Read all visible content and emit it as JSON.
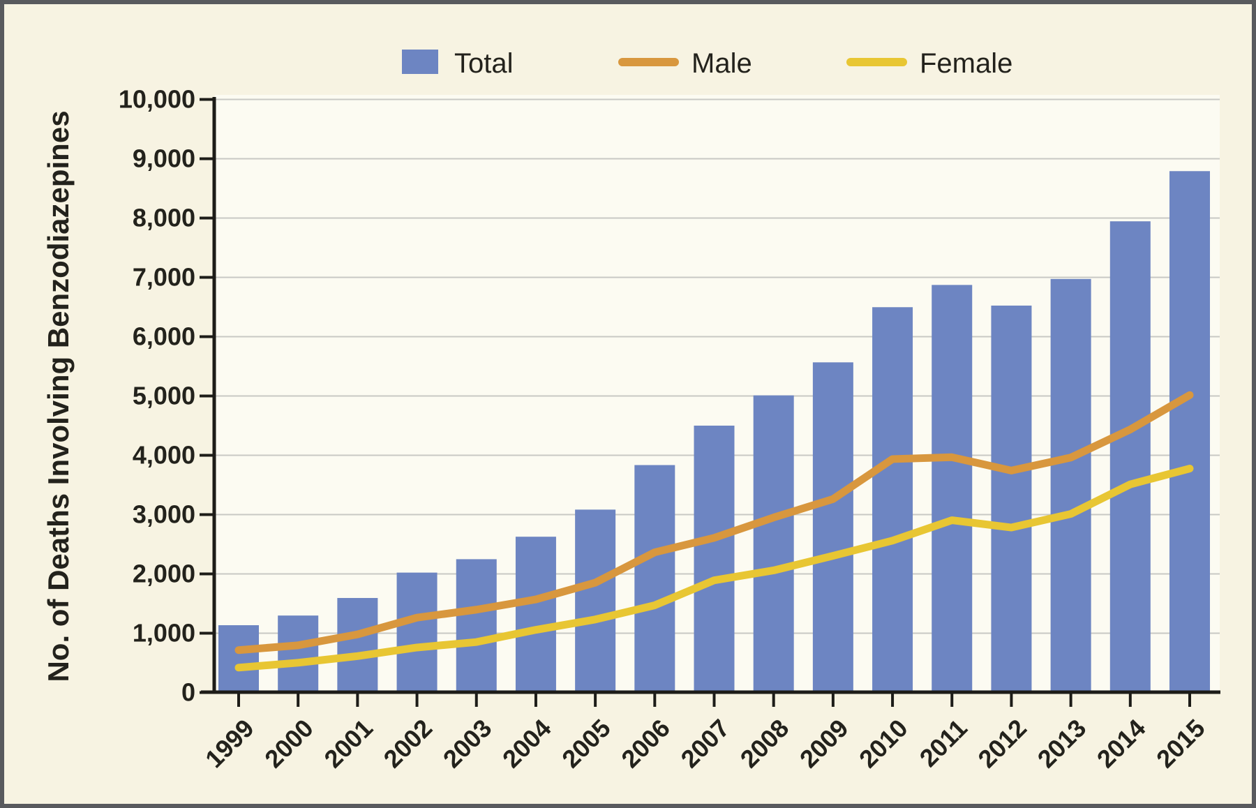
{
  "legend": {
    "total_label": "Total",
    "male_label": "Male",
    "female_label": "Female"
  },
  "y_axis": {
    "title": "No. of Deaths Involving Benzodiazepines",
    "tick_labels": [
      "0",
      "1,000",
      "2,000",
      "3,000",
      "4,000",
      "5,000",
      "6,000",
      "7,000",
      "8,000",
      "9,000",
      "10,000"
    ]
  },
  "x_axis": {
    "tick_labels": [
      "1999",
      "2000",
      "2001",
      "2002",
      "2003",
      "2004",
      "2005",
      "2006",
      "2007",
      "2008",
      "2009",
      "2010",
      "2011",
      "2012",
      "2013",
      "2014",
      "2015"
    ]
  },
  "colors": {
    "total_bar": "#6d85c2",
    "male_line": "#d8973e",
    "female_line": "#e8c633",
    "gridline": "#c8c8c4",
    "axis": "#1d1c18",
    "plot_background": "#fcfbf2",
    "page_background": "#f7f3e2",
    "frame_border": "#595a5e"
  },
  "chart_data": {
    "type": "bar",
    "title": "",
    "xlabel": "",
    "ylabel": "No. of Deaths Involving Benzodiazepines",
    "ylim": [
      0,
      10000
    ],
    "y_tick_step": 1000,
    "grid": true,
    "legend_position": "top",
    "categories": [
      "1999",
      "2000",
      "2001",
      "2002",
      "2003",
      "2004",
      "2005",
      "2006",
      "2007",
      "2008",
      "2009",
      "2010",
      "2011",
      "2012",
      "2013",
      "2014",
      "2015"
    ],
    "series": [
      {
        "name": "Total",
        "render": "bar",
        "color": "#6d85c2",
        "values": [
          1135,
          1298,
          1594,
          2022,
          2248,
          2627,
          3084,
          3835,
          4500,
          5010,
          5567,
          6497,
          6872,
          6524,
          6973,
          7945,
          8791
        ]
      },
      {
        "name": "Male",
        "render": "line",
        "color": "#d8973e",
        "values": [
          715,
          796,
          980,
          1263,
          1397,
          1570,
          1852,
          2364,
          2608,
          2951,
          3262,
          3936,
          3967,
          3742,
          3962,
          4435,
          5015
        ]
      },
      {
        "name": "Female",
        "render": "line",
        "color": "#e8c633",
        "values": [
          420,
          502,
          614,
          759,
          851,
          1057,
          1232,
          1471,
          1892,
          2059,
          2305,
          2561,
          2905,
          2782,
          3011,
          3510,
          3776
        ]
      }
    ]
  }
}
